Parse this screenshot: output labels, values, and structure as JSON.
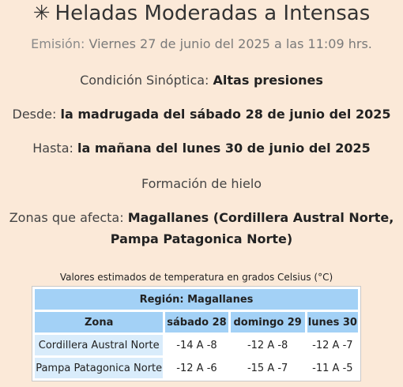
{
  "header": {
    "icon": "snowflake-icon",
    "title": "Heladas Moderadas a Intensas"
  },
  "emision": {
    "label": "Emisión:",
    "value": "Viernes 27 de junio del 2025 a las 11:09 hrs."
  },
  "condicion": {
    "label": "Condición Sinóptica:",
    "value": "Altas presiones"
  },
  "desde": {
    "label": "Desde:",
    "value": "la madrugada del sábado 28 de junio del 2025"
  },
  "hasta": {
    "label": "Hasta:",
    "value": "la mañana del lunes 30 de junio del 2025"
  },
  "formacion": "Formación de hielo",
  "zonas": {
    "label": "Zonas que afecta:",
    "value": "Magallanes (Cordillera Austral Norte, Pampa Patagonica Norte)"
  },
  "table": {
    "caption": "Valores estimados de temperatura en grados Celsius (°C)",
    "region": "Región: Magallanes",
    "headers": [
      "Zona",
      "sábado 28",
      "domingo 29",
      "lunes 30"
    ],
    "rows": [
      [
        "Cordillera Austral Norte",
        "-14 A -8",
        "-12 A -8",
        "-12 A -7"
      ],
      [
        "Pampa Patagonica Norte",
        "-12 A -6",
        "-15 A -7",
        "-11 A -5"
      ]
    ]
  }
}
